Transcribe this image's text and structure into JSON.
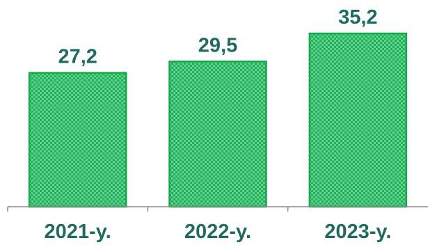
{
  "chart_data": {
    "type": "bar",
    "categories": [
      "2021-y.",
      "2022-y.",
      "2023-y."
    ],
    "values": [
      27.2,
      29.5,
      35.2
    ],
    "value_labels": [
      "27,2",
      "29,5",
      "35,2"
    ],
    "title": "",
    "xlabel": "",
    "ylabel": "",
    "ylim": [
      0,
      42
    ],
    "grid": false,
    "legend": "none"
  },
  "colors": {
    "bar_fill": "#57d98a",
    "bar_pattern": "#2fa85f",
    "bar_border": "#13a84a",
    "label_text": "#1f6b63",
    "axis": "#8c8c8c"
  }
}
